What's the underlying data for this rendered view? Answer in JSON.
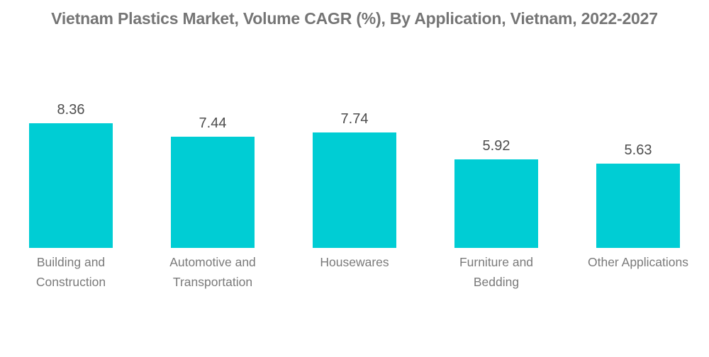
{
  "chart_data": {
    "type": "bar",
    "title": "Vietnam Plastics Market, Volume CAGR (%), By Application, Vietnam, 2022-2027",
    "categories": [
      "Building and Construction",
      "Automotive and Transportation",
      "Housewares",
      "Furniture and Bedding",
      "Other Applications"
    ],
    "values": [
      8.36,
      7.44,
      7.74,
      5.92,
      5.63
    ],
    "value_labels": [
      "8.36",
      "7.44",
      "7.74",
      "5.92",
      "5.63"
    ],
    "xlabel": "",
    "ylabel": "",
    "ylim": [
      0,
      8.36
    ],
    "grid": false,
    "legend": "none",
    "axis_lines": false,
    "colors": {
      "bar": "#00cdd4",
      "title_text": "#757575",
      "value_label_text": "#4d4d4d",
      "category_label_text": "#7a7a7a",
      "background": "#ffffff"
    }
  }
}
